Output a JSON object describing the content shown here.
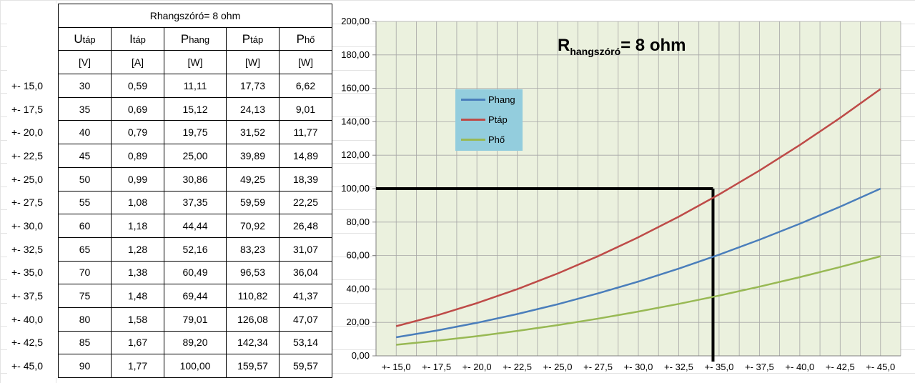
{
  "table": {
    "title": "Rhangszóró= 8 ohm",
    "headers": [
      {
        "main": "U",
        "sub": "táp"
      },
      {
        "main": "I",
        "sub": "táp"
      },
      {
        "main": "P",
        "sub": "hang"
      },
      {
        "main": "P",
        "sub": "táp"
      },
      {
        "main": "P",
        "sub": "hő"
      }
    ],
    "units": [
      "[V]",
      "[A]",
      "[W]",
      "[W]",
      "[W]"
    ],
    "rows": [
      {
        "label": "+- 15,0",
        "cells": [
          "30",
          "0,59",
          "11,11",
          "17,73",
          "6,62"
        ]
      },
      {
        "label": "+- 17,5",
        "cells": [
          "35",
          "0,69",
          "15,12",
          "24,13",
          "9,01"
        ]
      },
      {
        "label": "+- 20,0",
        "cells": [
          "40",
          "0,79",
          "19,75",
          "31,52",
          "11,77"
        ]
      },
      {
        "label": "+- 22,5",
        "cells": [
          "45",
          "0,89",
          "25,00",
          "39,89",
          "14,89"
        ]
      },
      {
        "label": "+- 25,0",
        "cells": [
          "50",
          "0,99",
          "30,86",
          "49,25",
          "18,39"
        ]
      },
      {
        "label": "+- 27,5",
        "cells": [
          "55",
          "1,08",
          "37,35",
          "59,59",
          "22,25"
        ]
      },
      {
        "label": "+- 30,0",
        "cells": [
          "60",
          "1,18",
          "44,44",
          "70,92",
          "26,48"
        ]
      },
      {
        "label": "+- 32,5",
        "cells": [
          "65",
          "1,28",
          "52,16",
          "83,23",
          "31,07"
        ]
      },
      {
        "label": "+- 35,0",
        "cells": [
          "70",
          "1,38",
          "60,49",
          "96,53",
          "36,04"
        ]
      },
      {
        "label": "+- 37,5",
        "cells": [
          "75",
          "1,48",
          "69,44",
          "110,82",
          "41,37"
        ]
      },
      {
        "label": "+- 40,0",
        "cells": [
          "80",
          "1,58",
          "79,01",
          "126,08",
          "47,07"
        ]
      },
      {
        "label": "+- 42,5",
        "cells": [
          "85",
          "1,67",
          "89,20",
          "142,34",
          "53,14"
        ]
      },
      {
        "label": "+- 45,0",
        "cells": [
          "90",
          "1,77",
          "100,00",
          "159,57",
          "59,57"
        ]
      }
    ]
  },
  "chart_data": {
    "type": "line",
    "title_main": "R",
    "title_sub": "hangszóró",
    "title_rest": "= 8 ohm",
    "categories": [
      "+- 15,0",
      "+- 17,5",
      "+- 20,0",
      "+- 22,5",
      "+- 25,0",
      "+- 27,5",
      "+- 30,0",
      "+- 32,5",
      "+- 35,0",
      "+- 37,5",
      "+- 40,0",
      "+- 42,5",
      "+- 45,0"
    ],
    "series": [
      {
        "name": "Phang",
        "color": "#4a7ebb",
        "values": [
          11.11,
          15.12,
          19.75,
          25.0,
          30.86,
          37.35,
          44.44,
          52.16,
          60.49,
          69.44,
          79.01,
          89.2,
          100.0
        ]
      },
      {
        "name": "Ptáp",
        "color": "#be4b48",
        "values": [
          17.73,
          24.13,
          31.52,
          39.89,
          49.25,
          59.59,
          70.92,
          83.23,
          96.53,
          110.82,
          126.08,
          142.34,
          159.57
        ]
      },
      {
        "name": "Phő",
        "color": "#98b954",
        "values": [
          6.62,
          9.01,
          11.77,
          14.89,
          18.39,
          22.25,
          26.48,
          31.07,
          36.04,
          41.37,
          47.07,
          53.14,
          59.57
        ]
      }
    ],
    "ylim": [
      0,
      200
    ],
    "yticks": [
      "0,00",
      "20,00",
      "40,00",
      "60,00",
      "80,00",
      "100,00",
      "120,00",
      "140,00",
      "160,00",
      "180,00",
      "200,00"
    ],
    "grid": true,
    "legend_placement": "upper-left",
    "plot_background": "#ebf1de",
    "annotation": {
      "type": "crosshair",
      "y": 100,
      "x_position": 8.35,
      "color": "#000000"
    }
  }
}
